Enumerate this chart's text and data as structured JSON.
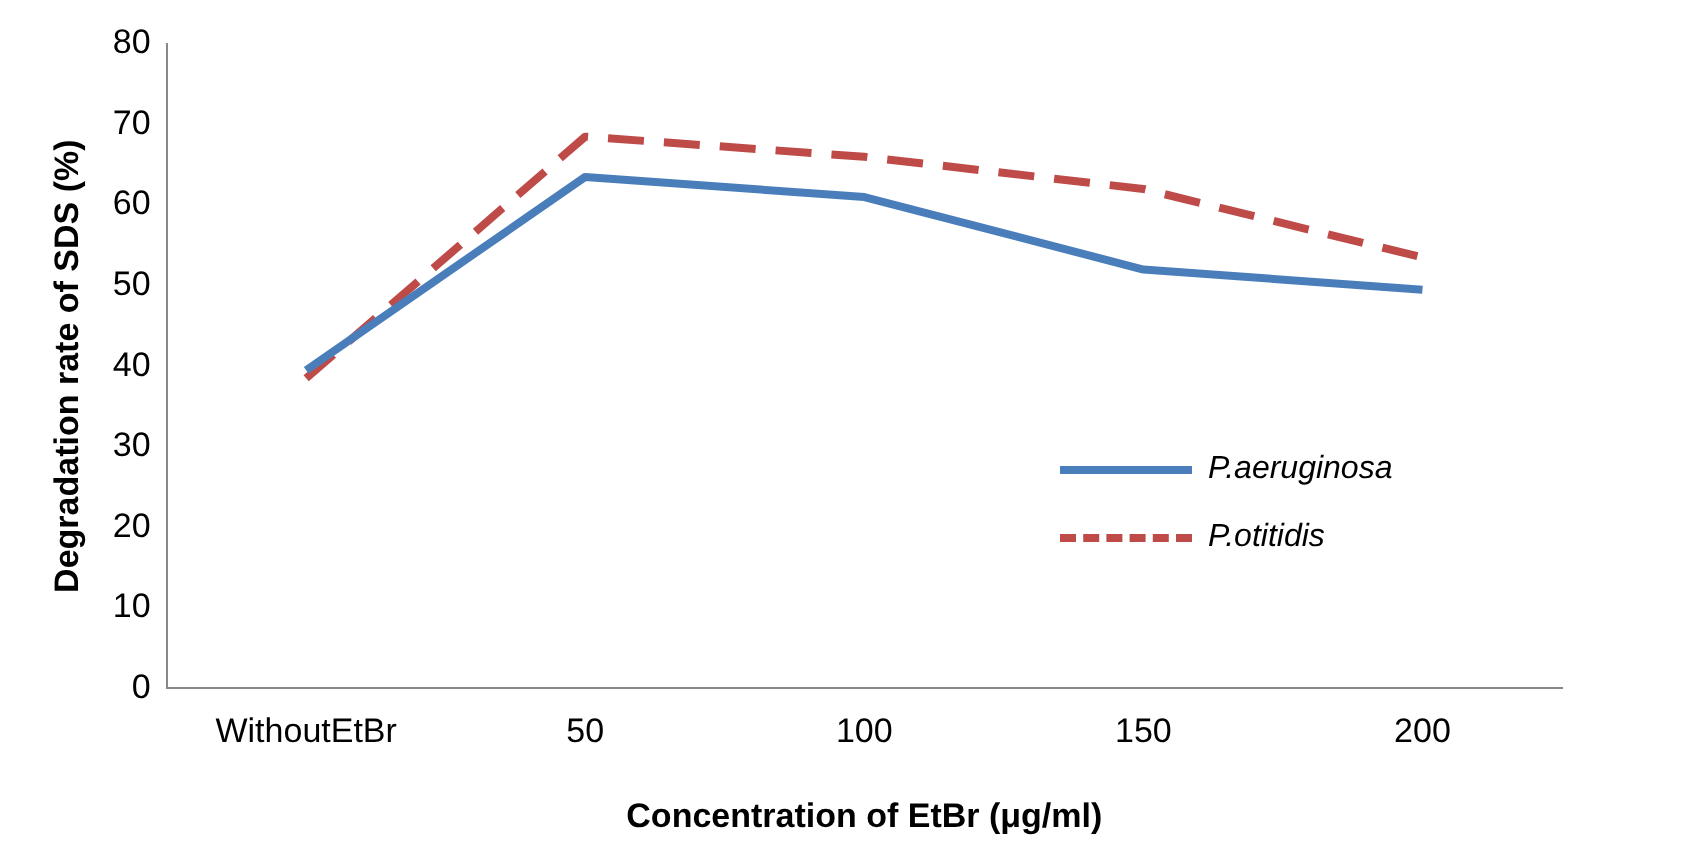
{
  "chart_data": {
    "type": "line",
    "xlabel": "Concentration of EtBr (μg/ml)",
    "ylabel": "Degradation rate of SDS (%)",
    "categories": [
      "WithoutEtBr",
      "50",
      "100",
      "150",
      "200"
    ],
    "series": [
      {
        "name": "P.aeruginosa",
        "color": "#4a7ebb",
        "line_style": "solid",
        "values": [
          39.5,
          63.5,
          61,
          52,
          49.5
        ]
      },
      {
        "name": "P.otitidis",
        "color": "#be4b48",
        "line_style": "dashed",
        "values": [
          38.5,
          68.5,
          66,
          62,
          53.5
        ]
      }
    ],
    "ylim": [
      0,
      80
    ],
    "yticks": [
      0,
      10,
      20,
      30,
      40,
      50,
      60,
      70,
      80
    ],
    "grid": false,
    "marker": "none",
    "legend": "right"
  }
}
